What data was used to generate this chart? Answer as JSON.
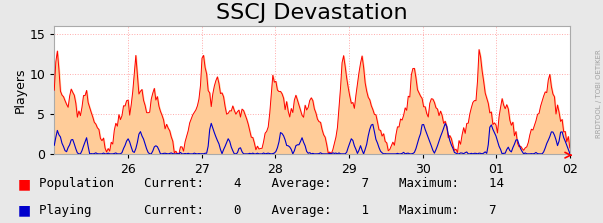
{
  "title": "SSCJ Devastation",
  "ylabel": "Players",
  "x_tick_labels": [
    "26",
    "27",
    "28",
    "29",
    "30",
    "01",
    "02"
  ],
  "ylim": [
    0,
    16
  ],
  "yticks": [
    0,
    5,
    10,
    15
  ],
  "background_color": "#e8e8e8",
  "plot_bg_color": "#ffffff",
  "grid_color": "#ffaaaa",
  "pop_line_color": "#ff0000",
  "pop_fill_color": "#ffcc99",
  "play_line_color": "#0000cc",
  "legend_pop_label": "Population",
  "legend_play_label": "Playing",
  "pop_current": 4,
  "pop_average": 7,
  "pop_maximum": 14,
  "play_current": 0,
  "play_average": 1,
  "play_maximum": 7,
  "watermark": "RRDTOOL / TOBI OETIKER",
  "title_fontsize": 16,
  "axis_fontsize": 9,
  "legend_fontsize": 9
}
